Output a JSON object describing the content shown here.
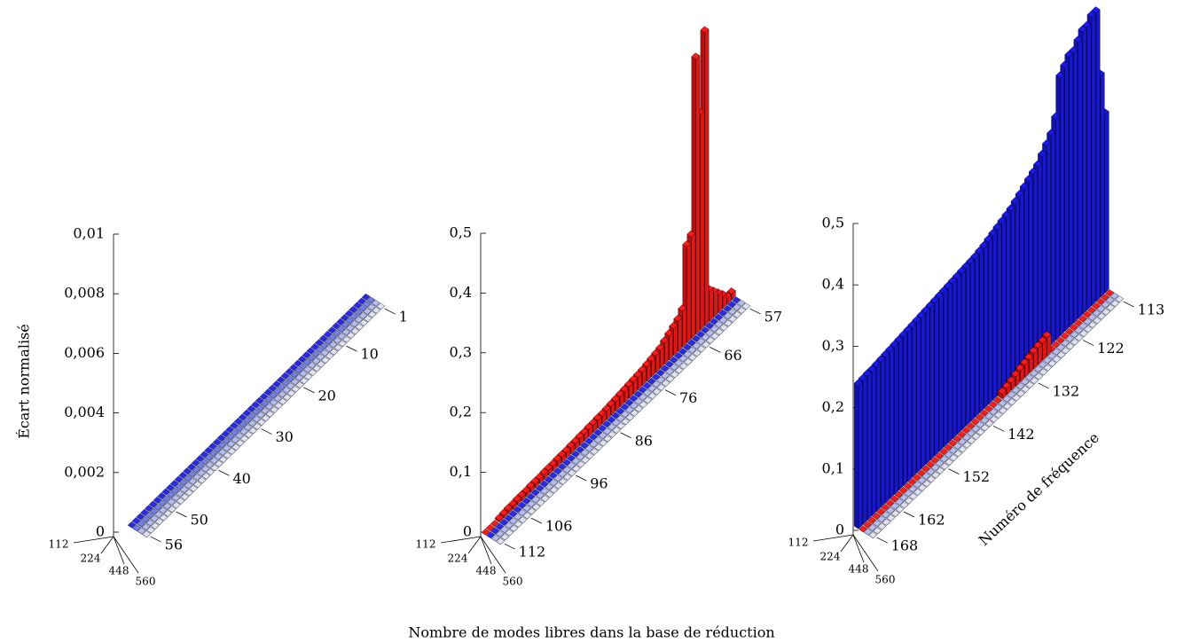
{
  "chart_data": [
    {
      "type": "bar3d",
      "ylabel": "Écart normalisé",
      "x": [
        1,
        2,
        3,
        4,
        5,
        6,
        7,
        8,
        9,
        10,
        11,
        12,
        13,
        14,
        15,
        16,
        17,
        18,
        19,
        20,
        21,
        22,
        23,
        24,
        25,
        26,
        27,
        28,
        29,
        30,
        31,
        32,
        33,
        34,
        35,
        36,
        37,
        38,
        39,
        40,
        41,
        42,
        43,
        44,
        45,
        46,
        47,
        48,
        49,
        50,
        51,
        52,
        53,
        54,
        55,
        56
      ],
      "xlim": [
        1,
        56
      ],
      "xticks": [
        1,
        10,
        20,
        30,
        40,
        50,
        56
      ],
      "ylim": [
        0,
        0.01
      ],
      "yticks": [
        0,
        {
          "value": 0.002,
          "label": "0,002"
        },
        {
          "value": 0.004,
          "label": "0,004"
        },
        {
          "value": 0.006,
          "label": "0,006"
        },
        {
          "value": 0.008,
          "label": "0,008"
        },
        {
          "value": 0.01,
          "label": "0,01"
        }
      ],
      "series": [
        {
          "name": "112",
          "color": "#2a2aee",
          "values": [
            0,
            0,
            0,
            0,
            0,
            0,
            0,
            0,
            0,
            0,
            0,
            0,
            0,
            0,
            0,
            0,
            0,
            0,
            0,
            0,
            0,
            0,
            0,
            0,
            0,
            0,
            0,
            0,
            0,
            0,
            0,
            0,
            0,
            0,
            0,
            0,
            0,
            0,
            0,
            0,
            0,
            0,
            0,
            0,
            0,
            0,
            0,
            0,
            0,
            0,
            0,
            0,
            0,
            0,
            0,
            0
          ]
        },
        {
          "name": "224",
          "color": "#7080e8",
          "values": [
            0,
            0,
            0,
            0,
            0,
            0,
            0,
            0,
            0,
            0,
            0,
            0,
            0,
            0,
            0,
            0,
            0,
            0,
            0,
            0,
            0,
            0,
            0,
            0,
            0,
            0,
            0,
            0,
            0,
            0,
            0,
            0,
            0,
            0,
            0,
            0,
            0,
            0,
            0,
            0,
            0,
            0,
            0,
            0,
            0,
            0,
            0,
            0,
            0,
            0,
            0,
            0,
            0,
            0,
            0,
            0
          ]
        },
        {
          "name": "448",
          "color": "#b4bcf2",
          "values": [
            0,
            0,
            0,
            0,
            0,
            0,
            0,
            0,
            0,
            0,
            0,
            0,
            0,
            0,
            0,
            0,
            0,
            0,
            0,
            0,
            0,
            0,
            0,
            0,
            0,
            0,
            0,
            0,
            0,
            0,
            0,
            0,
            0,
            0,
            0,
            0,
            0,
            0,
            0,
            0,
            0,
            0,
            0,
            0,
            0,
            0,
            0,
            0,
            0,
            0,
            0,
            0,
            0,
            0,
            0,
            0
          ]
        },
        {
          "name": "560",
          "color": "#dfe2f6",
          "values": [
            0,
            0,
            0,
            0,
            0,
            0,
            0,
            0,
            0,
            0,
            0,
            0,
            0,
            0,
            0,
            0,
            0,
            0,
            0,
            0,
            0,
            0,
            0,
            0,
            0,
            0,
            0,
            0,
            0,
            0,
            0,
            0,
            0,
            0,
            0,
            0,
            0,
            0,
            0,
            0,
            0,
            0,
            0,
            0,
            0,
            0,
            0,
            0,
            0,
            0,
            0,
            0,
            0,
            0,
            0,
            0
          ]
        }
      ]
    },
    {
      "type": "bar3d",
      "x": [
        57,
        58,
        59,
        60,
        61,
        62,
        63,
        64,
        65,
        66,
        67,
        68,
        69,
        70,
        71,
        72,
        73,
        74,
        75,
        76,
        77,
        78,
        79,
        80,
        81,
        82,
        83,
        84,
        85,
        86,
        87,
        88,
        89,
        90,
        91,
        92,
        93,
        94,
        95,
        96,
        97,
        98,
        99,
        100,
        101,
        102,
        103,
        104,
        105,
        106,
        107,
        108,
        109,
        110,
        111,
        112
      ],
      "xlim": [
        57,
        112
      ],
      "xticks": [
        57,
        66,
        76,
        86,
        96,
        106,
        112
      ],
      "ylim": [
        0,
        0.5
      ],
      "yticks": [
        0,
        {
          "value": 0.1,
          "label": "0,1"
        },
        {
          "value": 0.2,
          "label": "0,2"
        },
        {
          "value": 0.3,
          "label": "0,3"
        },
        {
          "value": 0.4,
          "label": "0,4"
        },
        {
          "value": 0.5,
          "label": "0,5"
        }
      ],
      "series": [
        {
          "name": "112",
          "color": "#ff1a1a",
          "values": [
            0.01,
            0.01,
            0.02,
            0.03,
            0.04,
            0.05,
            0.49,
            0.36,
            0.46,
            0.17,
            0.16,
            0.06,
            0.05,
            0.045,
            0.04,
            0.035,
            0.03,
            0.028,
            0.026,
            0.024,
            0.022,
            0.021,
            0.02,
            0.019,
            0.018,
            0.017,
            0.016,
            0.015,
            0.014,
            0.013,
            0.013,
            0.012,
            0.012,
            0.011,
            0.011,
            0.01,
            0.01,
            0.009,
            0.009,
            0.009,
            0.008,
            0.008,
            0.008,
            0.007,
            0.007,
            0.007,
            0.006,
            0.006,
            0.006,
            0.005,
            0.005,
            0.004,
            0.003,
            0,
            0,
            0
          ]
        },
        {
          "name": "224",
          "color": "#2a2aee",
          "values": [
            0,
            0,
            0,
            0,
            0,
            0,
            0,
            0,
            0,
            0,
            0,
            0,
            0,
            0,
            0,
            0,
            0,
            0,
            0,
            0,
            0,
            0,
            0,
            0,
            0,
            0,
            0,
            0,
            0,
            0,
            0,
            0,
            0,
            0,
            0,
            0,
            0,
            0,
            0,
            0,
            0,
            0,
            0,
            0,
            0,
            0,
            0,
            0,
            0,
            0,
            0,
            0,
            0,
            0,
            0,
            0
          ]
        },
        {
          "name": "448",
          "color": "#b4bcf2",
          "values": [
            0,
            0,
            0,
            0,
            0,
            0,
            0,
            0,
            0,
            0,
            0,
            0,
            0,
            0,
            0,
            0,
            0,
            0,
            0,
            0,
            0,
            0,
            0,
            0,
            0,
            0,
            0,
            0,
            0,
            0,
            0,
            0,
            0,
            0,
            0,
            0,
            0,
            0,
            0,
            0,
            0,
            0,
            0,
            0,
            0,
            0,
            0,
            0,
            0,
            0,
            0,
            0,
            0,
            0,
            0,
            0
          ]
        },
        {
          "name": "560",
          "color": "#dfe2f6",
          "values": [
            0,
            0,
            0,
            0,
            0,
            0,
            0,
            0,
            0,
            0,
            0,
            0,
            0,
            0,
            0,
            0,
            0,
            0,
            0,
            0,
            0,
            0,
            0,
            0,
            0,
            0,
            0,
            0,
            0,
            0,
            0,
            0,
            0,
            0,
            0,
            0,
            0,
            0,
            0,
            0,
            0,
            0,
            0,
            0,
            0,
            0,
            0,
            0,
            0,
            0,
            0,
            0,
            0,
            0,
            0,
            0
          ]
        }
      ]
    },
    {
      "type": "bar3d",
      "xlabel": "Numéro de fréquence",
      "x": [
        113,
        114,
        115,
        116,
        117,
        118,
        119,
        120,
        121,
        122,
        123,
        124,
        125,
        126,
        127,
        128,
        129,
        130,
        131,
        132,
        133,
        134,
        135,
        136,
        137,
        138,
        139,
        140,
        141,
        142,
        143,
        144,
        145,
        146,
        147,
        148,
        149,
        150,
        151,
        152,
        153,
        154,
        155,
        156,
        157,
        158,
        159,
        160,
        161,
        162,
        163,
        164,
        165,
        166,
        167,
        168
      ],
      "xlim": [
        113,
        168
      ],
      "xticks": [
        113,
        122,
        132,
        142,
        152,
        162,
        168
      ],
      "ylim": [
        0,
        0.5
      ],
      "yticks": [
        0,
        {
          "value": 0.1,
          "label": "0,1"
        },
        {
          "value": 0.2,
          "label": "0,2"
        },
        {
          "value": 0.3,
          "label": "0,3"
        },
        {
          "value": 0.4,
          "label": "0,4"
        },
        {
          "value": 0.5,
          "label": "0,5"
        }
      ],
      "series": [
        {
          "name": "112",
          "color": "#1a1aee",
          "values": [
            0.29,
            0.36,
            0.47,
            0.47,
            0.46,
            0.46,
            0.45,
            0.44,
            0.44,
            0.43,
            0.42,
            0.36,
            0.34,
            0.33,
            0.32,
            0.31,
            0.305,
            0.3,
            0.295,
            0.29,
            0.285,
            0.28,
            0.277,
            0.274,
            0.271,
            0.268,
            0.265,
            0.262,
            0.26,
            0.258,
            0.257,
            0.256,
            0.255,
            0.254,
            0.253,
            0.252,
            0.251,
            0.25,
            0.249,
            0.248,
            0.247,
            0.246,
            0.245,
            0.244,
            0.243,
            0.242,
            0.241,
            0.24,
            0.239,
            0.238,
            0.237,
            0.236,
            0.235,
            0.235,
            0.234,
            0.233
          ]
        },
        {
          "name": "224",
          "color": "#ff1a1a",
          "values": [
            0,
            0,
            0,
            0,
            0,
            0,
            0,
            0,
            0,
            0,
            0,
            0,
            0,
            0,
            0.03,
            0.028,
            0.027,
            0.025,
            0.022,
            0.02,
            0.018,
            0.015,
            0.012,
            0.01,
            0.008,
            0,
            0,
            0,
            0,
            0,
            0,
            0,
            0,
            0,
            0,
            0,
            0,
            0,
            0,
            0,
            0,
            0,
            0,
            0,
            0,
            0,
            0,
            0,
            0,
            0,
            0,
            0,
            0,
            0,
            0,
            0
          ]
        },
        {
          "name": "448",
          "color": "#b4bcf2",
          "values": [
            0,
            0,
            0,
            0,
            0,
            0,
            0,
            0,
            0,
            0,
            0,
            0,
            0,
            0,
            0,
            0,
            0,
            0,
            0,
            0,
            0,
            0,
            0,
            0,
            0,
            0,
            0,
            0,
            0,
            0,
            0,
            0,
            0,
            0,
            0,
            0,
            0,
            0,
            0,
            0,
            0,
            0,
            0,
            0,
            0,
            0,
            0,
            0,
            0,
            0,
            0,
            0,
            0,
            0,
            0,
            0
          ]
        },
        {
          "name": "560",
          "color": "#dfe2f6",
          "values": [
            0,
            0,
            0,
            0,
            0,
            0,
            0,
            0,
            0,
            0,
            0,
            0,
            0,
            0,
            0,
            0,
            0,
            0,
            0,
            0,
            0,
            0,
            0,
            0,
            0,
            0,
            0,
            0,
            0,
            0,
            0,
            0,
            0,
            0,
            0,
            0,
            0,
            0,
            0,
            0,
            0,
            0,
            0,
            0,
            0,
            0,
            0,
            0,
            0,
            0,
            0,
            0,
            0,
            0,
            0,
            0
          ]
        }
      ]
    }
  ],
  "shared_xlabel": "Nombre de modes libres dans la base de réduction"
}
